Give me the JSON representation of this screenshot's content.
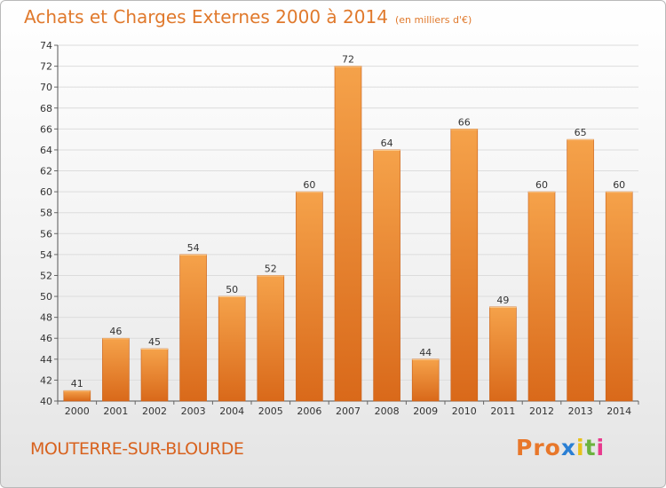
{
  "title": "Achats et Charges Externes 2000 à 2014",
  "unit": "(en milliers d'€)",
  "town": "MOUTERRE-SUR-BLOURDE",
  "logo": "Proxiti",
  "colors": {
    "bar_light": "#f5a24a",
    "bar_dark": "#d9691a",
    "title": "#e0792c",
    "town": "#d8621e",
    "grid": "#dddddd",
    "logo": [
      "#e8772a",
      "#e8772a",
      "#e8772a",
      "#2a7fd4",
      "#e8c11a",
      "#6cb33e",
      "#e83a8e"
    ]
  },
  "chart_data": {
    "type": "bar",
    "title": "Achats et Charges Externes 2000 à 2014",
    "subtitle": "(en milliers d'€)",
    "xlabel": "",
    "ylabel": "",
    "categories": [
      "2000",
      "2001",
      "2002",
      "2003",
      "2004",
      "2005",
      "2006",
      "2007",
      "2008",
      "2009",
      "2010",
      "2011",
      "2012",
      "2013",
      "2014"
    ],
    "values": [
      41,
      46,
      45,
      54,
      50,
      52,
      60,
      72,
      64,
      44,
      66,
      49,
      60,
      65,
      60
    ],
    "ylim": [
      40,
      74
    ],
    "yticks": [
      40,
      42,
      44,
      46,
      48,
      50,
      52,
      54,
      56,
      58,
      60,
      62,
      64,
      66,
      68,
      70,
      72,
      74
    ],
    "grid": true,
    "legend": "none"
  }
}
